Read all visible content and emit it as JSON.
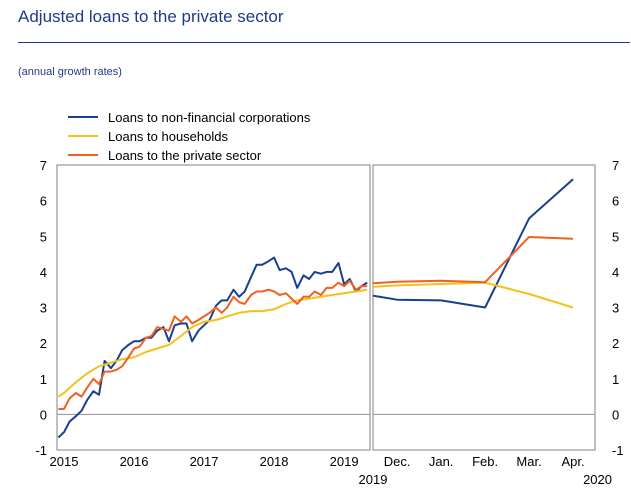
{
  "header": {
    "title": "Adjusted loans to the private sector",
    "subtitle": "(annual growth rates)"
  },
  "colors": {
    "nfc": "#1a3f8f",
    "households": "#f5c01a",
    "private": "#f0601e",
    "title": "#1f3a8a"
  },
  "chart_data": {
    "type": "line",
    "y_ticks": [
      "-1",
      "0",
      "1",
      "2",
      "3",
      "4",
      "5",
      "6",
      "7"
    ],
    "ylim": [
      -1,
      7
    ],
    "grid": false,
    "legend": [
      {
        "key": "nfc",
        "label": "Loans to non-financial corporations"
      },
      {
        "key": "households",
        "label": "Loans to households"
      },
      {
        "key": "private",
        "label": "Loans to the private sector"
      }
    ],
    "panels": [
      {
        "x_tick_labels": [
          "2015",
          "2016",
          "2017",
          "2018",
          "2019"
        ],
        "x_tick_positions": [
          2015,
          2016,
          2017,
          2018,
          2019
        ],
        "xlim": [
          2014.9,
          2019.37
        ],
        "series": [
          {
            "key": "nfc",
            "x": [
              2014.92,
              2015.0,
              2015.08,
              2015.17,
              2015.25,
              2015.33,
              2015.42,
              2015.5,
              2015.58,
              2015.67,
              2015.75,
              2015.83,
              2015.92,
              2016.0,
              2016.08,
              2016.17,
              2016.25,
              2016.33,
              2016.42,
              2016.5,
              2016.58,
              2016.67,
              2016.75,
              2016.83,
              2016.92,
              2017.0,
              2017.08,
              2017.17,
              2017.25,
              2017.33,
              2017.42,
              2017.5,
              2017.58,
              2017.67,
              2017.75,
              2017.83,
              2017.92,
              2018.0,
              2018.08,
              2018.17,
              2018.25,
              2018.33,
              2018.42,
              2018.5,
              2018.58,
              2018.67,
              2018.75,
              2018.83,
              2018.92,
              2019.0,
              2019.08,
              2019.17,
              2019.25,
              2019.33
            ],
            "y": [
              -0.65,
              -0.5,
              -0.2,
              -0.05,
              0.1,
              0.4,
              0.65,
              0.55,
              1.5,
              1.3,
              1.5,
              1.8,
              1.95,
              2.05,
              2.05,
              2.15,
              2.15,
              2.35,
              2.45,
              2.05,
              2.5,
              2.55,
              2.55,
              2.05,
              2.35,
              2.5,
              2.65,
              3.05,
              3.2,
              3.2,
              3.5,
              3.3,
              3.45,
              3.85,
              4.2,
              4.2,
              4.3,
              4.4,
              4.05,
              4.1,
              4.0,
              3.55,
              3.9,
              3.8,
              4.0,
              3.95,
              4.0,
              4.0,
              4.25,
              3.65,
              3.8,
              3.45,
              3.6,
              3.7
            ]
          },
          {
            "key": "households",
            "x": [
              2014.92,
              2015.0,
              2015.17,
              2015.33,
              2015.5,
              2015.67,
              2015.83,
              2016.0,
              2016.17,
              2016.33,
              2016.5,
              2016.67,
              2016.83,
              2017.0,
              2017.17,
              2017.33,
              2017.5,
              2017.67,
              2017.83,
              2018.0,
              2018.17,
              2018.33,
              2018.5,
              2018.67,
              2018.83,
              2019.0,
              2019.17,
              2019.33
            ],
            "y": [
              0.5,
              0.6,
              0.9,
              1.15,
              1.35,
              1.45,
              1.55,
              1.6,
              1.75,
              1.85,
              1.95,
              2.2,
              2.45,
              2.6,
              2.65,
              2.75,
              2.85,
              2.9,
              2.9,
              2.95,
              3.1,
              3.2,
              3.25,
              3.3,
              3.35,
              3.4,
              3.45,
              3.5
            ]
          },
          {
            "key": "private",
            "x": [
              2014.92,
              2015.0,
              2015.08,
              2015.17,
              2015.25,
              2015.33,
              2015.42,
              2015.5,
              2015.58,
              2015.67,
              2015.75,
              2015.83,
              2015.92,
              2016.0,
              2016.08,
              2016.17,
              2016.25,
              2016.33,
              2016.42,
              2016.5,
              2016.58,
              2016.67,
              2016.75,
              2016.83,
              2016.92,
              2017.0,
              2017.08,
              2017.17,
              2017.25,
              2017.33,
              2017.42,
              2017.5,
              2017.58,
              2017.67,
              2017.75,
              2017.83,
              2017.92,
              2018.0,
              2018.08,
              2018.17,
              2018.25,
              2018.33,
              2018.42,
              2018.5,
              2018.58,
              2018.67,
              2018.75,
              2018.83,
              2018.92,
              2019.0,
              2019.08,
              2019.17,
              2019.25,
              2019.33
            ],
            "y": [
              0.15,
              0.15,
              0.45,
              0.6,
              0.5,
              0.75,
              1.0,
              0.85,
              1.2,
              1.2,
              1.25,
              1.35,
              1.6,
              1.85,
              1.9,
              2.15,
              2.2,
              2.45,
              2.4,
              2.35,
              2.75,
              2.6,
              2.75,
              2.55,
              2.65,
              2.75,
              2.85,
              3.0,
              2.85,
              3.0,
              3.3,
              3.15,
              3.1,
              3.35,
              3.45,
              3.45,
              3.5,
              3.45,
              3.35,
              3.4,
              3.25,
              3.1,
              3.3,
              3.3,
              3.45,
              3.35,
              3.55,
              3.55,
              3.7,
              3.6,
              3.75,
              3.5,
              3.6,
              3.6
            ]
          }
        ]
      },
      {
        "x_tick_labels": [
          "Dec.",
          "Jan.",
          "Feb.",
          "Mar.",
          "Apr."
        ],
        "x_tick_positions": [
          0,
          1,
          2,
          3,
          4
        ],
        "xlim": [
          -0.55,
          4.5
        ],
        "year_labels": [
          "2019",
          "2020"
        ],
        "series": [
          {
            "key": "nfc",
            "x": [
              -0.55,
              0,
              1,
              2,
              3,
              4
            ],
            "y": [
              3.33,
              3.22,
              3.2,
              3.0,
              5.5,
              6.6
            ]
          },
          {
            "key": "households",
            "x": [
              -0.55,
              0,
              1,
              2,
              3,
              4
            ],
            "y": [
              3.58,
              3.62,
              3.66,
              3.7,
              3.38,
              3.0
            ]
          },
          {
            "key": "private",
            "x": [
              -0.55,
              0,
              1,
              2,
              3,
              4
            ],
            "y": [
              3.68,
              3.72,
              3.75,
              3.71,
              4.98,
              4.93
            ]
          }
        ]
      }
    ]
  }
}
